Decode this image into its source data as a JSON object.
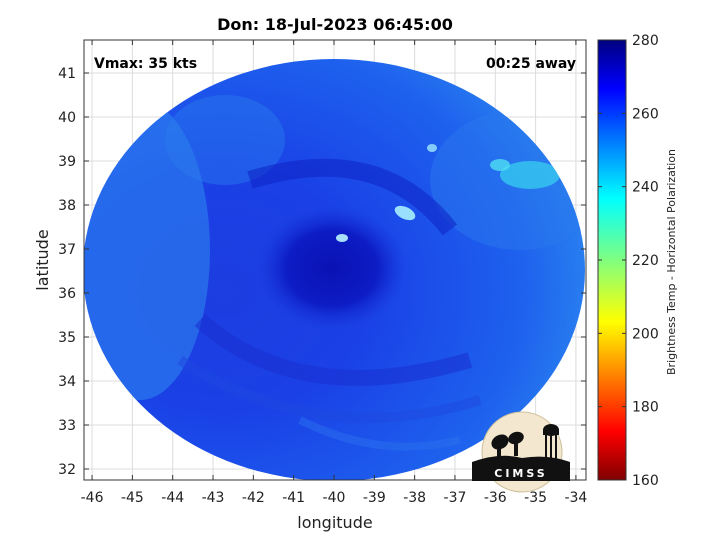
{
  "chart_data": {
    "type": "heatmap",
    "title": "Don: 18-Jul-2023 06:45:00",
    "xlabel": "longitude",
    "ylabel": "latitude",
    "xlim": [
      -46.2,
      -33.75
    ],
    "ylim": [
      31.75,
      41.75
    ],
    "x_ticks": [
      -46,
      -45,
      -44,
      -43,
      -42,
      -41,
      -40,
      -39,
      -38,
      -37,
      -36,
      -35,
      -34
    ],
    "y_ticks": [
      32,
      33,
      34,
      35,
      36,
      37,
      38,
      39,
      40,
      41
    ],
    "grid": true,
    "storm_center": {
      "lon": -40.0,
      "lat": 36.6
    },
    "annotations": {
      "vmax": "Vmax: 35 kts",
      "away": "00:25 away"
    },
    "colorbar": {
      "label": "Brightness Temp - Horizontal Polarization",
      "range": [
        160,
        280
      ],
      "ticks": [
        160,
        180,
        200,
        220,
        240,
        260,
        280
      ],
      "colormap": "jet"
    },
    "logo": {
      "text": "CIMSS"
    }
  }
}
